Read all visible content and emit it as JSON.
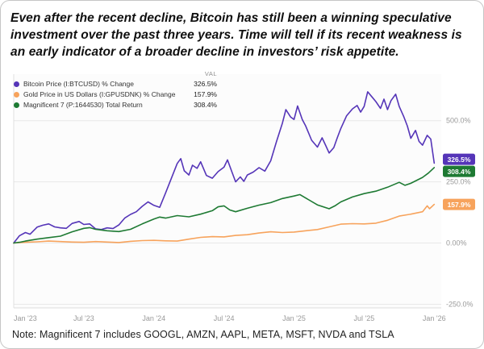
{
  "headline": "Even after the recent decline, Bitcoin has still been a winning speculative investment over the past three years. Time will tell if its recent weakness is an early indicator of a broader decline in investors’ risk appetite.",
  "note": "Note: Magnificent 7 includes GOOGL, AMZN, AAPL, META, MSFT, NVDA and TSLA",
  "chart_data": {
    "type": "line",
    "title": "",
    "legend_position": "top-left",
    "grid": "horizontal",
    "val_header": "VAL",
    "x_unit": "months since Jan 2023",
    "xlim": [
      0,
      36.6
    ],
    "ylim": [
      -265,
      690
    ],
    "x_ticks": [
      {
        "x": 0,
        "label": "Jan '23"
      },
      {
        "x": 6,
        "label": "Jul '23"
      },
      {
        "x": 12,
        "label": "Jan '24"
      },
      {
        "x": 18,
        "label": "Jul '24"
      },
      {
        "x": 24,
        "label": "Jan '25"
      },
      {
        "x": 30,
        "label": "Jul '25"
      },
      {
        "x": 36,
        "label": "Jan '26"
      }
    ],
    "y_ticks": [
      {
        "v": 500,
        "label": "500.0%"
      },
      {
        "v": 250,
        "label": "250.0%"
      },
      {
        "v": 0,
        "label": "0.00%"
      },
      {
        "v": -250,
        "label": "-250.0%"
      }
    ],
    "series": [
      {
        "name": "Bitcoin Price (I:BTCUSD) % Change",
        "color": "#5535b8",
        "final_label": "326.5%",
        "final_value": 326.5,
        "points": [
          [
            0,
            0
          ],
          [
            0.5,
            30
          ],
          [
            1,
            43
          ],
          [
            1.4,
            36
          ],
          [
            2,
            65
          ],
          [
            2.5,
            73
          ],
          [
            3,
            78
          ],
          [
            3.5,
            66
          ],
          [
            4,
            62
          ],
          [
            4.5,
            60
          ],
          [
            5,
            80
          ],
          [
            5.6,
            88
          ],
          [
            6,
            76
          ],
          [
            6.5,
            78
          ],
          [
            7,
            58
          ],
          [
            7.5,
            55
          ],
          [
            8,
            62
          ],
          [
            8.5,
            59
          ],
          [
            9,
            74
          ],
          [
            9.5,
            102
          ],
          [
            10,
            117
          ],
          [
            10.5,
            128
          ],
          [
            11,
            150
          ],
          [
            11.5,
            168
          ],
          [
            12,
            154
          ],
          [
            12.5,
            146
          ],
          [
            13,
            205
          ],
          [
            13.5,
            265
          ],
          [
            14,
            325
          ],
          [
            14.3,
            345
          ],
          [
            14.6,
            295
          ],
          [
            15,
            278
          ],
          [
            15.3,
            318
          ],
          [
            15.7,
            305
          ],
          [
            16,
            332
          ],
          [
            16.5,
            276
          ],
          [
            17,
            265
          ],
          [
            17.5,
            292
          ],
          [
            18,
            310
          ],
          [
            18.3,
            340
          ],
          [
            18.7,
            288
          ],
          [
            19,
            250
          ],
          [
            19.4,
            270
          ],
          [
            19.7,
            252
          ],
          [
            20,
            278
          ],
          [
            20.5,
            290
          ],
          [
            21,
            308
          ],
          [
            21.5,
            294
          ],
          [
            22,
            336
          ],
          [
            22.5,
            415
          ],
          [
            23,
            490
          ],
          [
            23.3,
            545
          ],
          [
            23.7,
            515
          ],
          [
            24,
            505
          ],
          [
            24.3,
            560
          ],
          [
            24.7,
            505
          ],
          [
            25,
            478
          ],
          [
            25.5,
            420
          ],
          [
            26,
            392
          ],
          [
            26.4,
            430
          ],
          [
            26.7,
            400
          ],
          [
            27,
            368
          ],
          [
            27.4,
            390
          ],
          [
            27.7,
            430
          ],
          [
            28,
            468
          ],
          [
            28.5,
            520
          ],
          [
            29,
            548
          ],
          [
            29.4,
            562
          ],
          [
            29.7,
            535
          ],
          [
            30,
            558
          ],
          [
            30.3,
            618
          ],
          [
            30.7,
            595
          ],
          [
            31,
            578
          ],
          [
            31.4,
            550
          ],
          [
            31.7,
            588
          ],
          [
            32,
            545
          ],
          [
            32.3,
            582
          ],
          [
            32.7,
            608
          ],
          [
            33,
            558
          ],
          [
            33.4,
            515
          ],
          [
            33.7,
            478
          ],
          [
            34,
            428
          ],
          [
            34.4,
            460
          ],
          [
            34.7,
            415
          ],
          [
            35,
            400
          ],
          [
            35.4,
            440
          ],
          [
            35.7,
            425
          ],
          [
            36,
            326.5
          ]
        ]
      },
      {
        "name": "Gold Price in US Dollars (I:GPUSDNK) % Change",
        "color": "#f7a35c",
        "final_label": "157.9%",
        "final_value": 157.9,
        "points": [
          [
            0,
            0
          ],
          [
            1,
            3
          ],
          [
            2,
            5
          ],
          [
            3,
            8
          ],
          [
            4,
            6
          ],
          [
            5,
            4
          ],
          [
            6,
            3
          ],
          [
            7,
            6
          ],
          [
            8,
            4
          ],
          [
            9,
            2
          ],
          [
            10,
            7
          ],
          [
            11,
            10
          ],
          [
            12,
            11
          ],
          [
            13,
            9
          ],
          [
            14,
            8
          ],
          [
            15,
            16
          ],
          [
            16,
            23
          ],
          [
            17,
            26
          ],
          [
            18,
            25
          ],
          [
            19,
            31
          ],
          [
            20,
            34
          ],
          [
            21,
            41
          ],
          [
            22,
            46
          ],
          [
            23,
            43
          ],
          [
            24,
            45
          ],
          [
            25,
            50
          ],
          [
            26,
            55
          ],
          [
            27,
            66
          ],
          [
            28,
            77
          ],
          [
            29,
            79
          ],
          [
            30,
            78
          ],
          [
            31,
            81
          ],
          [
            32,
            93
          ],
          [
            33,
            110
          ],
          [
            34,
            118
          ],
          [
            35,
            128
          ],
          [
            35.4,
            152
          ],
          [
            35.6,
            140
          ],
          [
            36,
            157.9
          ]
        ]
      },
      {
        "name": "Magnificent 7 (P:1644530) Total Return",
        "color": "#1e7a33",
        "final_label": "308.4%",
        "final_value": 308.4,
        "points": [
          [
            0,
            0
          ],
          [
            0.5,
            3
          ],
          [
            1,
            8
          ],
          [
            2,
            16
          ],
          [
            3,
            22
          ],
          [
            4,
            28
          ],
          [
            5,
            46
          ],
          [
            6,
            60
          ],
          [
            6.5,
            63
          ],
          [
            7,
            56
          ],
          [
            8,
            50
          ],
          [
            9,
            47
          ],
          [
            10,
            56
          ],
          [
            11,
            78
          ],
          [
            12,
            98
          ],
          [
            12.5,
            106
          ],
          [
            13,
            102
          ],
          [
            14,
            112
          ],
          [
            15,
            107
          ],
          [
            16,
            118
          ],
          [
            17,
            132
          ],
          [
            17.5,
            148
          ],
          [
            18,
            152
          ],
          [
            18.5,
            135
          ],
          [
            19,
            128
          ],
          [
            20,
            142
          ],
          [
            21,
            155
          ],
          [
            22,
            165
          ],
          [
            23,
            182
          ],
          [
            24,
            192
          ],
          [
            24.5,
            198
          ],
          [
            25,
            184
          ],
          [
            26,
            156
          ],
          [
            27,
            140
          ],
          [
            27.5,
            152
          ],
          [
            28,
            168
          ],
          [
            29,
            188
          ],
          [
            30,
            202
          ],
          [
            31,
            212
          ],
          [
            32,
            228
          ],
          [
            33,
            248
          ],
          [
            33.5,
            236
          ],
          [
            34,
            244
          ],
          [
            35,
            268
          ],
          [
            35.5,
            286
          ],
          [
            36,
            308.4
          ]
        ]
      }
    ]
  }
}
